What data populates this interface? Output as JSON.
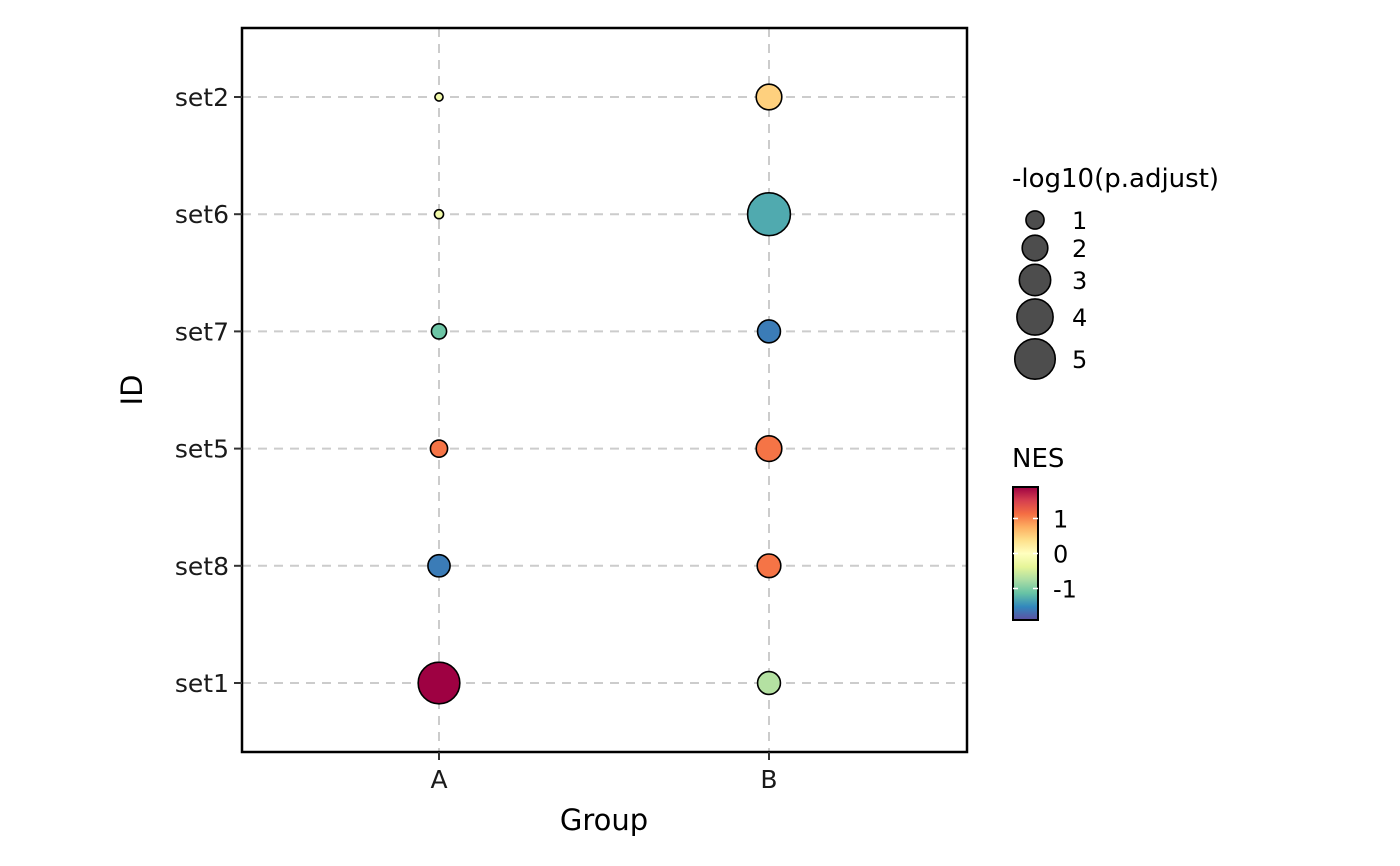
{
  "chart_data": {
    "type": "scatter",
    "xlabel": "Group",
    "ylabel": "ID",
    "categories_x": [
      "A",
      "B"
    ],
    "categories_y": [
      "set1",
      "set8",
      "set5",
      "set7",
      "set6",
      "set2"
    ],
    "grid": true,
    "points": [
      {
        "group": "A",
        "id": "set2",
        "neglog10_padj": 0.2,
        "nes": -0.2
      },
      {
        "group": "A",
        "id": "set6",
        "neglog10_padj": 0.25,
        "nes": -0.2
      },
      {
        "group": "A",
        "id": "set7",
        "neglog10_padj": 0.7,
        "nes": -1.1
      },
      {
        "group": "A",
        "id": "set5",
        "neglog10_padj": 0.9,
        "nes": 1.1
      },
      {
        "group": "A",
        "id": "set8",
        "neglog10_padj": 1.5,
        "nes": -1.6
      },
      {
        "group": "A",
        "id": "set1",
        "neglog10_padj": 5.3,
        "nes": 1.9
      },
      {
        "group": "B",
        "id": "set2",
        "neglog10_padj": 2.0,
        "nes": 0.5
      },
      {
        "group": "B",
        "id": "set6",
        "neglog10_padj": 5.6,
        "nes": -1.3
      },
      {
        "group": "B",
        "id": "set7",
        "neglog10_padj": 1.6,
        "nes": -1.6
      },
      {
        "group": "B",
        "id": "set5",
        "neglog10_padj": 2.0,
        "nes": 1.1
      },
      {
        "group": "B",
        "id": "set8",
        "neglog10_padj": 1.7,
        "nes": 1.1
      },
      {
        "group": "B",
        "id": "set1",
        "neglog10_padj": 1.6,
        "nes": -0.7
      }
    ],
    "size_legend": {
      "title": "-log10(p.adjust)",
      "values": [
        "1",
        "2",
        "3",
        "4",
        "5"
      ],
      "color": "#4d4d4d"
    },
    "color_legend": {
      "title": "NES",
      "ticks": [
        "1",
        "0",
        "-1"
      ],
      "tick_values": [
        1,
        0,
        -1
      ],
      "range": [
        -1.9,
        1.9
      ],
      "palette": [
        "#5e4fa2",
        "#3288bd",
        "#66c2a5",
        "#abdda4",
        "#e6f598",
        "#ffffbf",
        "#fee08b",
        "#fdae61",
        "#f46d43",
        "#d53e4f",
        "#9e0142"
      ]
    }
  }
}
